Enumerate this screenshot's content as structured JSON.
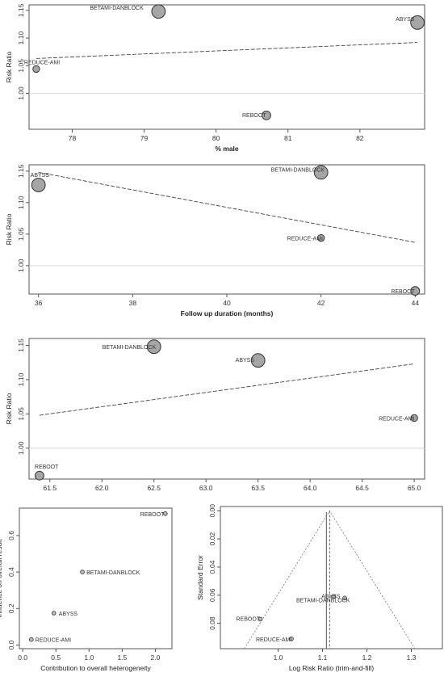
{
  "chart_data": [
    {
      "type": "scatter",
      "xlabel": "% male",
      "ylabel": "Risk Ratio",
      "xlim": [
        77.4,
        82.9
      ],
      "ylim": [
        0.935,
        1.16
      ],
      "xticks": [
        "78",
        "79",
        "80",
        "81",
        "82"
      ],
      "xtick_values": [
        78,
        79,
        80,
        81,
        82
      ],
      "yticks": [
        "1.00",
        "1.05",
        "1.10",
        "1.15"
      ],
      "ytick_values": [
        1.0,
        1.05,
        1.1,
        1.15
      ],
      "reference_line": 1.0,
      "regression": {
        "x": [
          77.5,
          82.8
        ],
        "y": [
          1.063,
          1.092
        ]
      },
      "points": [
        {
          "label": "BETAMI-DANBLOCK",
          "x": 79.2,
          "y": 1.148,
          "size": 14
        },
        {
          "label": "ABYSS",
          "x": 82.8,
          "y": 1.128,
          "size": 14
        },
        {
          "label": "REDUCE-AMI",
          "x": 77.5,
          "y": 1.044,
          "size": 7
        },
        {
          "label": "REBOOT",
          "x": 80.7,
          "y": 0.96,
          "size": 9
        }
      ]
    },
    {
      "type": "scatter",
      "xlabel": "Follow up duration (months)",
      "ylabel": "Risk Ratio",
      "xlim": [
        35.8,
        44.2
      ],
      "ylim": [
        0.955,
        1.16
      ],
      "xticks": [
        "36",
        "38",
        "40",
        "42",
        "44"
      ],
      "xtick_values": [
        36,
        38,
        40,
        42,
        44
      ],
      "yticks": [
        "1.00",
        "1.05",
        "1.10",
        "1.15"
      ],
      "ytick_values": [
        1.0,
        1.05,
        1.1,
        1.15
      ],
      "reference_line": 1.0,
      "regression": {
        "x": [
          36,
          44
        ],
        "y": [
          1.148,
          1.037
        ]
      },
      "points": [
        {
          "label": "ABYSS",
          "x": 36,
          "y": 1.128,
          "size": 14
        },
        {
          "label": "BETAMI-DANBLOCK",
          "x": 42,
          "y": 1.148,
          "size": 14
        },
        {
          "label": "REDUCE-AMI",
          "x": 42,
          "y": 1.044,
          "size": 7
        },
        {
          "label": "REBOOT",
          "x": 44,
          "y": 0.96,
          "size": 9
        }
      ]
    },
    {
      "type": "scatter",
      "xlabel": "",
      "ylabel": "Risk Ratio",
      "xlim": [
        61.3,
        65.1
      ],
      "ylim": [
        0.955,
        1.16
      ],
      "xticks": [
        "61.5",
        "62.0",
        "62.5",
        "63.0",
        "63.5",
        "64.0",
        "64.5",
        "65.0"
      ],
      "xtick_values": [
        61.5,
        62.0,
        62.5,
        63.0,
        63.5,
        64.0,
        64.5,
        65.0
      ],
      "yticks": [
        "1.00",
        "1.05",
        "1.10",
        "1.15"
      ],
      "ytick_values": [
        1.0,
        1.05,
        1.1,
        1.15
      ],
      "reference_line": 1.0,
      "regression": {
        "x": [
          61.4,
          65.0
        ],
        "y": [
          1.048,
          1.123
        ]
      },
      "points": [
        {
          "label": "BETAMI-DANBLOCK",
          "x": 62.5,
          "y": 1.148,
          "size": 14
        },
        {
          "label": "ABYSS",
          "x": 63.5,
          "y": 1.128,
          "size": 14
        },
        {
          "label": "REDUCE-AMI",
          "x": 65.0,
          "y": 1.044,
          "size": 7
        },
        {
          "label": "REBOOT",
          "x": 61.4,
          "y": 0.96,
          "size": 9
        }
      ]
    },
    {
      "type": "scatter",
      "xlabel": "Contribution to overall heterogeneity",
      "ylabel": "Influence on overall result",
      "xlim": [
        -0.05,
        2.25
      ],
      "ylim": [
        -0.02,
        0.75
      ],
      "xticks": [
        "0.0",
        "0.5",
        "1.0",
        "1.5",
        "2.0"
      ],
      "xtick_values": [
        0,
        0.5,
        1.0,
        1.5,
        2.0
      ],
      "yticks": [
        "0.0",
        "0.2",
        "0.4",
        "0.6"
      ],
      "ytick_values": [
        0,
        0.2,
        0.4,
        0.6
      ],
      "points": [
        {
          "label": "REBOOT",
          "x": 2.15,
          "y": 0.72
        },
        {
          "label": "BETAMI-DANBLOCK",
          "x": 0.9,
          "y": 0.4
        },
        {
          "label": "ABYSS",
          "x": 0.47,
          "y": 0.175
        },
        {
          "label": "REDUCE-AMI",
          "x": 0.13,
          "y": 0.03
        }
      ]
    },
    {
      "type": "scatter",
      "subtype": "funnel",
      "xlabel": "Log Risk Ratio (trim-and-fill)",
      "ylabel": "Standard Error",
      "xlim": [
        0.87,
        1.37
      ],
      "ylim": [
        0.098,
        -0.003
      ],
      "xticks": [
        "1.0",
        "1.1",
        "1.2",
        "1.3"
      ],
      "xtick_values": [
        1.0,
        1.1,
        1.2,
        1.3
      ],
      "yticks": [
        "0.00",
        "0.02",
        "0.04",
        "0.06",
        "0.08"
      ],
      "ytick_values": [
        0.0,
        0.02,
        0.04,
        0.06,
        0.08
      ],
      "pooled": 1.116,
      "points": [
        {
          "label": "ABYSS",
          "x": 1.125,
          "y": 0.061
        },
        {
          "label": "BETAMI-DANBLOCK",
          "x": 1.15,
          "y": 0.062
        },
        {
          "label": "REBOOT",
          "x": 0.96,
          "y": 0.077
        },
        {
          "label": "REDUCE-AMI",
          "x": 1.03,
          "y": 0.091
        }
      ]
    }
  ]
}
